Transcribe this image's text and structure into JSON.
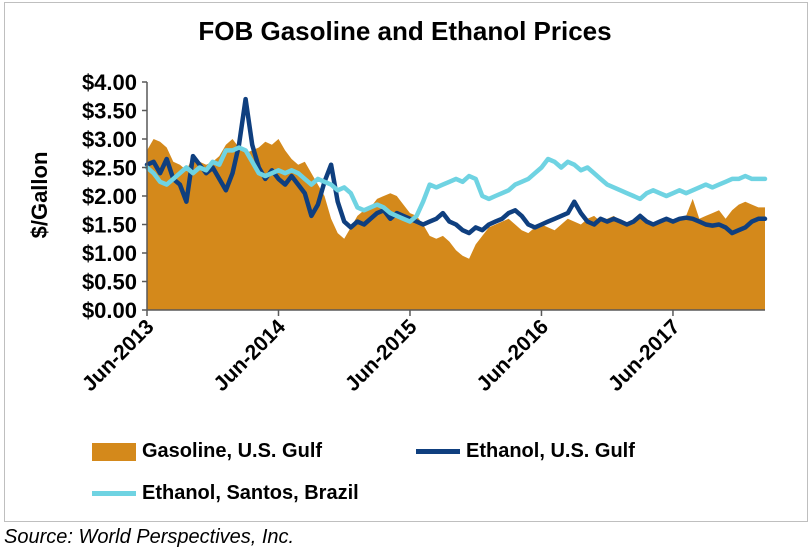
{
  "chart_data": {
    "type": "area+line",
    "title": "FOB Gasoline and Ethanol Prices",
    "ylabel": "$/Gallon",
    "xlabel": "",
    "ylim": [
      0,
      4
    ],
    "xlim": [
      2013.5,
      2018.2
    ],
    "y_ticks": [
      "$0.00",
      "$0.50",
      "$1.00",
      "$1.50",
      "$2.00",
      "$2.50",
      "$3.00",
      "$3.50",
      "$4.00"
    ],
    "x_ticks": [
      {
        "label": "Jun-2013",
        "t": 2013.5
      },
      {
        "label": "Jun-2014",
        "t": 2014.5
      },
      {
        "label": "Jun-2015",
        "t": 2015.5
      },
      {
        "label": "Jun-2016",
        "t": 2016.5
      },
      {
        "label": "Jun-2017",
        "t": 2017.5
      }
    ],
    "grid": false,
    "legend_position": "bottom",
    "series": [
      {
        "name": "Gasoline, U.S. Gulf",
        "kind": "area",
        "color": "#d4891b",
        "points": [
          [
            2013.5,
            2.8
          ],
          [
            2013.55,
            3.0
          ],
          [
            2013.6,
            2.95
          ],
          [
            2013.65,
            2.85
          ],
          [
            2013.7,
            2.6
          ],
          [
            2013.75,
            2.55
          ],
          [
            2013.8,
            2.45
          ],
          [
            2013.85,
            2.7
          ],
          [
            2013.9,
            2.6
          ],
          [
            2013.95,
            2.55
          ],
          [
            2014.0,
            2.6
          ],
          [
            2014.05,
            2.7
          ],
          [
            2014.1,
            2.9
          ],
          [
            2014.15,
            3.0
          ],
          [
            2014.2,
            2.85
          ],
          [
            2014.25,
            2.75
          ],
          [
            2014.3,
            2.8
          ],
          [
            2014.35,
            2.85
          ],
          [
            2014.4,
            2.95
          ],
          [
            2014.45,
            2.9
          ],
          [
            2014.5,
            3.0
          ],
          [
            2014.55,
            2.8
          ],
          [
            2014.6,
            2.65
          ],
          [
            2014.65,
            2.55
          ],
          [
            2014.7,
            2.6
          ],
          [
            2014.75,
            2.4
          ],
          [
            2014.8,
            2.2
          ],
          [
            2014.85,
            2.0
          ],
          [
            2014.9,
            1.6
          ],
          [
            2014.95,
            1.35
          ],
          [
            2015.0,
            1.25
          ],
          [
            2015.05,
            1.45
          ],
          [
            2015.1,
            1.65
          ],
          [
            2015.15,
            1.75
          ],
          [
            2015.2,
            1.8
          ],
          [
            2015.25,
            1.95
          ],
          [
            2015.3,
            2.0
          ],
          [
            2015.35,
            2.05
          ],
          [
            2015.4,
            2.0
          ],
          [
            2015.45,
            1.85
          ],
          [
            2015.5,
            1.7
          ],
          [
            2015.55,
            1.65
          ],
          [
            2015.6,
            1.5
          ],
          [
            2015.65,
            1.3
          ],
          [
            2015.7,
            1.25
          ],
          [
            2015.75,
            1.3
          ],
          [
            2015.8,
            1.2
          ],
          [
            2015.85,
            1.05
          ],
          [
            2015.9,
            0.95
          ],
          [
            2015.95,
            0.9
          ],
          [
            2016.0,
            1.15
          ],
          [
            2016.05,
            1.3
          ],
          [
            2016.1,
            1.45
          ],
          [
            2016.15,
            1.5
          ],
          [
            2016.2,
            1.55
          ],
          [
            2016.25,
            1.6
          ],
          [
            2016.3,
            1.5
          ],
          [
            2016.35,
            1.4
          ],
          [
            2016.4,
            1.35
          ],
          [
            2016.45,
            1.45
          ],
          [
            2016.5,
            1.5
          ],
          [
            2016.55,
            1.45
          ],
          [
            2016.6,
            1.4
          ],
          [
            2016.65,
            1.5
          ],
          [
            2016.7,
            1.6
          ],
          [
            2016.75,
            1.55
          ],
          [
            2016.8,
            1.5
          ],
          [
            2016.85,
            1.6
          ],
          [
            2016.9,
            1.65
          ],
          [
            2016.95,
            1.55
          ],
          [
            2017.0,
            1.6
          ],
          [
            2017.05,
            1.65
          ],
          [
            2017.1,
            1.55
          ],
          [
            2017.15,
            1.5
          ],
          [
            2017.2,
            1.55
          ],
          [
            2017.25,
            1.6
          ],
          [
            2017.3,
            1.55
          ],
          [
            2017.35,
            1.5
          ],
          [
            2017.4,
            1.55
          ],
          [
            2017.45,
            1.6
          ],
          [
            2017.5,
            1.55
          ],
          [
            2017.55,
            1.6
          ],
          [
            2017.6,
            1.65
          ],
          [
            2017.65,
            1.95
          ],
          [
            2017.7,
            1.6
          ],
          [
            2017.75,
            1.65
          ],
          [
            2017.8,
            1.7
          ],
          [
            2017.85,
            1.75
          ],
          [
            2017.9,
            1.6
          ],
          [
            2017.95,
            1.75
          ],
          [
            2018.0,
            1.85
          ],
          [
            2018.05,
            1.9
          ],
          [
            2018.1,
            1.85
          ],
          [
            2018.15,
            1.8
          ],
          [
            2018.2,
            1.8
          ]
        ]
      },
      {
        "name": "Ethanol, U.S. Gulf",
        "kind": "line",
        "color": "#0f3f7f",
        "points": [
          [
            2013.5,
            2.55
          ],
          [
            2013.55,
            2.6
          ],
          [
            2013.6,
            2.4
          ],
          [
            2013.65,
            2.65
          ],
          [
            2013.7,
            2.3
          ],
          [
            2013.75,
            2.2
          ],
          [
            2013.8,
            1.9
          ],
          [
            2013.85,
            2.7
          ],
          [
            2013.9,
            2.55
          ],
          [
            2013.95,
            2.4
          ],
          [
            2014.0,
            2.5
          ],
          [
            2014.05,
            2.3
          ],
          [
            2014.1,
            2.1
          ],
          [
            2014.15,
            2.4
          ],
          [
            2014.2,
            2.9
          ],
          [
            2014.25,
            3.7
          ],
          [
            2014.3,
            2.9
          ],
          [
            2014.35,
            2.5
          ],
          [
            2014.4,
            2.3
          ],
          [
            2014.45,
            2.45
          ],
          [
            2014.5,
            2.3
          ],
          [
            2014.55,
            2.2
          ],
          [
            2014.6,
            2.35
          ],
          [
            2014.65,
            2.2
          ],
          [
            2014.7,
            2.05
          ],
          [
            2014.75,
            1.65
          ],
          [
            2014.8,
            1.85
          ],
          [
            2014.85,
            2.25
          ],
          [
            2014.9,
            2.55
          ],
          [
            2014.95,
            1.9
          ],
          [
            2015.0,
            1.55
          ],
          [
            2015.05,
            1.45
          ],
          [
            2015.1,
            1.55
          ],
          [
            2015.15,
            1.5
          ],
          [
            2015.2,
            1.6
          ],
          [
            2015.25,
            1.7
          ],
          [
            2015.3,
            1.75
          ],
          [
            2015.35,
            1.6
          ],
          [
            2015.4,
            1.7
          ],
          [
            2015.45,
            1.65
          ],
          [
            2015.5,
            1.6
          ],
          [
            2015.55,
            1.55
          ],
          [
            2015.6,
            1.5
          ],
          [
            2015.65,
            1.55
          ],
          [
            2015.7,
            1.6
          ],
          [
            2015.75,
            1.7
          ],
          [
            2015.8,
            1.55
          ],
          [
            2015.85,
            1.5
          ],
          [
            2015.9,
            1.4
          ],
          [
            2015.95,
            1.35
          ],
          [
            2016.0,
            1.45
          ],
          [
            2016.05,
            1.4
          ],
          [
            2016.1,
            1.5
          ],
          [
            2016.15,
            1.55
          ],
          [
            2016.2,
            1.6
          ],
          [
            2016.25,
            1.7
          ],
          [
            2016.3,
            1.75
          ],
          [
            2016.35,
            1.65
          ],
          [
            2016.4,
            1.5
          ],
          [
            2016.45,
            1.45
          ],
          [
            2016.5,
            1.5
          ],
          [
            2016.55,
            1.55
          ],
          [
            2016.6,
            1.6
          ],
          [
            2016.65,
            1.65
          ],
          [
            2016.7,
            1.7
          ],
          [
            2016.75,
            1.9
          ],
          [
            2016.8,
            1.7
          ],
          [
            2016.85,
            1.55
          ],
          [
            2016.9,
            1.5
          ],
          [
            2016.95,
            1.6
          ],
          [
            2017.0,
            1.55
          ],
          [
            2017.05,
            1.6
          ],
          [
            2017.1,
            1.55
          ],
          [
            2017.15,
            1.5
          ],
          [
            2017.2,
            1.55
          ],
          [
            2017.25,
            1.65
          ],
          [
            2017.3,
            1.55
          ],
          [
            2017.35,
            1.5
          ],
          [
            2017.4,
            1.55
          ],
          [
            2017.45,
            1.6
          ],
          [
            2017.5,
            1.55
          ],
          [
            2017.55,
            1.6
          ],
          [
            2017.6,
            1.62
          ],
          [
            2017.65,
            1.6
          ],
          [
            2017.7,
            1.55
          ],
          [
            2017.75,
            1.5
          ],
          [
            2017.8,
            1.48
          ],
          [
            2017.85,
            1.5
          ],
          [
            2017.9,
            1.45
          ],
          [
            2017.95,
            1.35
          ],
          [
            2018.0,
            1.4
          ],
          [
            2018.05,
            1.45
          ],
          [
            2018.1,
            1.55
          ],
          [
            2018.15,
            1.6
          ],
          [
            2018.2,
            1.6
          ]
        ]
      },
      {
        "name": "Ethanol, Santos, Brazil",
        "kind": "line",
        "color": "#6fd3e2",
        "points": [
          [
            2013.5,
            2.5
          ],
          [
            2013.55,
            2.4
          ],
          [
            2013.6,
            2.25
          ],
          [
            2013.65,
            2.2
          ],
          [
            2013.7,
            2.3
          ],
          [
            2013.75,
            2.4
          ],
          [
            2013.8,
            2.5
          ],
          [
            2013.85,
            2.4
          ],
          [
            2013.9,
            2.5
          ],
          [
            2013.95,
            2.45
          ],
          [
            2014.0,
            2.6
          ],
          [
            2014.05,
            2.55
          ],
          [
            2014.1,
            2.8
          ],
          [
            2014.15,
            2.8
          ],
          [
            2014.2,
            2.85
          ],
          [
            2014.25,
            2.8
          ],
          [
            2014.3,
            2.6
          ],
          [
            2014.35,
            2.4
          ],
          [
            2014.4,
            2.35
          ],
          [
            2014.45,
            2.4
          ],
          [
            2014.5,
            2.45
          ],
          [
            2014.55,
            2.4
          ],
          [
            2014.6,
            2.45
          ],
          [
            2014.65,
            2.4
          ],
          [
            2014.7,
            2.3
          ],
          [
            2014.75,
            2.2
          ],
          [
            2014.8,
            2.3
          ],
          [
            2014.85,
            2.25
          ],
          [
            2014.9,
            2.2
          ],
          [
            2014.95,
            2.1
          ],
          [
            2015.0,
            2.15
          ],
          [
            2015.05,
            2.05
          ],
          [
            2015.1,
            1.8
          ],
          [
            2015.15,
            1.75
          ],
          [
            2015.2,
            1.8
          ],
          [
            2015.25,
            1.85
          ],
          [
            2015.3,
            1.8
          ],
          [
            2015.35,
            1.7
          ],
          [
            2015.4,
            1.65
          ],
          [
            2015.45,
            1.6
          ],
          [
            2015.5,
            1.55
          ],
          [
            2015.55,
            1.65
          ],
          [
            2015.6,
            1.9
          ],
          [
            2015.65,
            2.2
          ],
          [
            2015.7,
            2.15
          ],
          [
            2015.75,
            2.2
          ],
          [
            2015.8,
            2.25
          ],
          [
            2015.85,
            2.3
          ],
          [
            2015.9,
            2.25
          ],
          [
            2015.95,
            2.35
          ],
          [
            2016.0,
            2.3
          ],
          [
            2016.05,
            2.0
          ],
          [
            2016.1,
            1.95
          ],
          [
            2016.15,
            2.0
          ],
          [
            2016.2,
            2.05
          ],
          [
            2016.25,
            2.1
          ],
          [
            2016.3,
            2.2
          ],
          [
            2016.35,
            2.25
          ],
          [
            2016.4,
            2.3
          ],
          [
            2016.45,
            2.4
          ],
          [
            2016.5,
            2.5
          ],
          [
            2016.55,
            2.65
          ],
          [
            2016.6,
            2.6
          ],
          [
            2016.65,
            2.5
          ],
          [
            2016.7,
            2.6
          ],
          [
            2016.75,
            2.55
          ],
          [
            2016.8,
            2.45
          ],
          [
            2016.85,
            2.5
          ],
          [
            2016.9,
            2.4
          ],
          [
            2016.95,
            2.3
          ],
          [
            2017.0,
            2.2
          ],
          [
            2017.05,
            2.15
          ],
          [
            2017.1,
            2.1
          ],
          [
            2017.15,
            2.05
          ],
          [
            2017.2,
            2.0
          ],
          [
            2017.25,
            1.95
          ],
          [
            2017.3,
            2.05
          ],
          [
            2017.35,
            2.1
          ],
          [
            2017.4,
            2.05
          ],
          [
            2017.45,
            2.0
          ],
          [
            2017.5,
            2.05
          ],
          [
            2017.55,
            2.1
          ],
          [
            2017.6,
            2.05
          ],
          [
            2017.65,
            2.1
          ],
          [
            2017.7,
            2.15
          ],
          [
            2017.75,
            2.2
          ],
          [
            2017.8,
            2.15
          ],
          [
            2017.85,
            2.2
          ],
          [
            2017.9,
            2.25
          ],
          [
            2017.95,
            2.3
          ],
          [
            2018.0,
            2.3
          ],
          [
            2018.05,
            2.35
          ],
          [
            2018.1,
            2.3
          ],
          [
            2018.15,
            2.3
          ],
          [
            2018.2,
            2.3
          ]
        ]
      }
    ]
  },
  "source": "Source: World Perspectives, Inc."
}
